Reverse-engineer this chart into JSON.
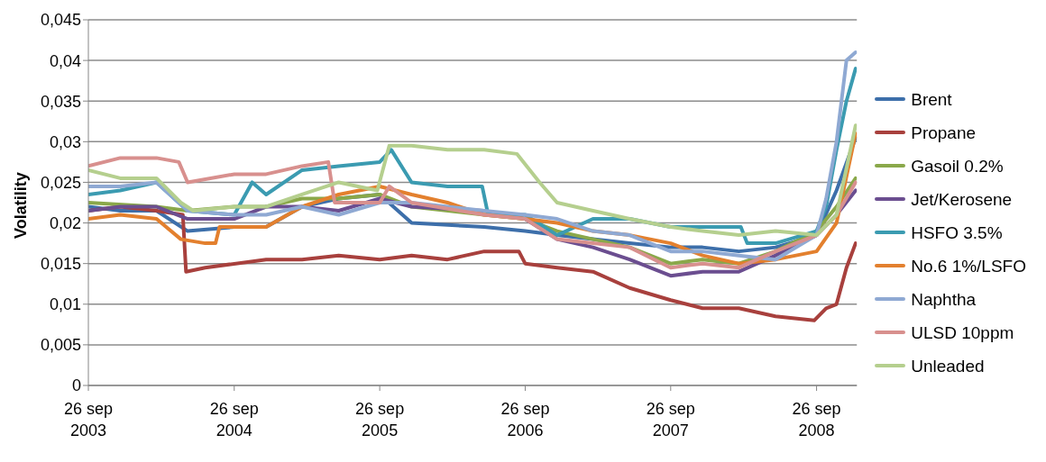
{
  "chart_data": {
    "type": "line",
    "ylabel": "Volatility",
    "xlim": [
      "2003-09-26",
      "2009-01-05"
    ],
    "xticks": [
      {
        "value": "2003-09-26",
        "label": "26 sep 2003"
      },
      {
        "value": "2004-09-26",
        "label": "26 sep 2004"
      },
      {
        "value": "2005-09-26",
        "label": "26 sep 2005"
      },
      {
        "value": "2006-09-26",
        "label": "26 sep 2006"
      },
      {
        "value": "2007-09-26",
        "label": "26 sep 2007"
      },
      {
        "value": "2008-09-26",
        "label": "26 sep 2008"
      }
    ],
    "ylim": [
      0,
      0.045
    ],
    "yticks": [
      0,
      {
        "value": 0.005,
        "label": "0,005"
      },
      {
        "value": 0.01,
        "label": "0,01"
      },
      {
        "value": 0.015,
        "label": "0,015"
      },
      {
        "value": 0.02,
        "label": "0,02"
      },
      {
        "value": 0.025,
        "label": "0,025"
      },
      {
        "value": 0.03,
        "label": "0,03"
      },
      {
        "value": 0.035,
        "label": "0,035"
      },
      {
        "value": 0.04,
        "label": "0,04"
      },
      {
        "value": 0.045,
        "label": "0,045"
      }
    ],
    "grid": "y",
    "legend": "right",
    "marker": "none",
    "line_style": "solid",
    "series": [
      {
        "name": "Brent",
        "color": "#3d6faa",
        "x": [
          "2003-09-26",
          "2003-12-15",
          "2004-03-15",
          "2004-06-01",
          "2004-09-26",
          "2004-12-15",
          "2005-03-15",
          "2005-06-15",
          "2005-09-26",
          "2005-12-15",
          "2006-06-15",
          "2006-09-26",
          "2006-12-15",
          "2007-03-15",
          "2007-06-15",
          "2007-09-26",
          "2007-12-15",
          "2008-03-15",
          "2008-06-15",
          "2008-09-26",
          "2008-11-15",
          "2009-01-02"
        ],
        "values": [
          0.022,
          0.0215,
          0.0215,
          0.019,
          0.0195,
          0.0195,
          0.022,
          0.023,
          0.0235,
          0.02,
          0.0195,
          0.019,
          0.0185,
          0.018,
          0.0175,
          0.017,
          0.017,
          0.0165,
          0.017,
          0.0185,
          0.024,
          0.0305
        ]
      },
      {
        "name": "Propane",
        "color": "#a8403d",
        "x": [
          "2003-09-26",
          "2003-12-15",
          "2004-03-15",
          "2004-05-20",
          "2004-05-28",
          "2004-07-15",
          "2004-12-15",
          "2005-03-15",
          "2005-06-15",
          "2005-09-26",
          "2005-12-15",
          "2006-03-15",
          "2006-06-15",
          "2006-09-10",
          "2006-09-26",
          "2006-12-15",
          "2007-03-15",
          "2007-06-15",
          "2007-09-26",
          "2007-12-15",
          "2008-03-15",
          "2008-06-15",
          "2008-09-20",
          "2008-10-20",
          "2008-11-15",
          "2008-12-10",
          "2009-01-02"
        ],
        "values": [
          0.0215,
          0.022,
          0.0215,
          0.021,
          0.014,
          0.0145,
          0.0155,
          0.0155,
          0.016,
          0.0155,
          0.016,
          0.0155,
          0.0165,
          0.0165,
          0.015,
          0.0145,
          0.014,
          0.012,
          0.0105,
          0.0095,
          0.0095,
          0.0085,
          0.008,
          0.0095,
          0.01,
          0.0145,
          0.0175
        ]
      },
      {
        "name": "Gasoil 0.2%",
        "color": "#8aa84a",
        "x": [
          "2003-09-26",
          "2004-03-15",
          "2004-06-01",
          "2004-09-26",
          "2004-12-15",
          "2005-03-15",
          "2005-06-15",
          "2005-09-26",
          "2005-12-15",
          "2006-06-15",
          "2006-09-26",
          "2006-12-15",
          "2007-03-15",
          "2007-06-15",
          "2007-09-26",
          "2007-12-15",
          "2008-03-15",
          "2008-06-15",
          "2008-09-26",
          "2008-11-15",
          "2009-01-02"
        ],
        "values": [
          0.0225,
          0.022,
          0.0215,
          0.022,
          0.022,
          0.023,
          0.023,
          0.0235,
          0.022,
          0.021,
          0.0205,
          0.019,
          0.018,
          0.017,
          0.015,
          0.0155,
          0.015,
          0.0165,
          0.019,
          0.022,
          0.0255
        ]
      },
      {
        "name": "Jet/Kerosene",
        "color": "#6b4e90",
        "x": [
          "2003-09-26",
          "2003-12-15",
          "2004-03-15",
          "2004-06-01",
          "2004-09-26",
          "2004-12-15",
          "2005-03-15",
          "2005-06-15",
          "2005-09-26",
          "2005-12-15",
          "2006-06-15",
          "2006-09-26",
          "2006-12-15",
          "2007-03-15",
          "2007-06-15",
          "2007-09-26",
          "2007-12-15",
          "2008-03-15",
          "2008-06-15",
          "2008-09-26",
          "2008-11-15",
          "2009-01-02"
        ],
        "values": [
          0.0215,
          0.022,
          0.022,
          0.0205,
          0.0205,
          0.022,
          0.022,
          0.0215,
          0.023,
          0.022,
          0.0215,
          0.0205,
          0.018,
          0.017,
          0.0155,
          0.0135,
          0.014,
          0.014,
          0.016,
          0.0185,
          0.021,
          0.024
        ]
      },
      {
        "name": "HSFO 3.5%",
        "color": "#3b9bb1",
        "x": [
          "2003-09-26",
          "2003-12-15",
          "2004-03-15",
          "2004-06-01",
          "2004-09-26",
          "2004-11-10",
          "2004-12-15",
          "2005-03-15",
          "2005-06-15",
          "2005-09-26",
          "2005-10-25",
          "2005-12-15",
          "2006-03-15",
          "2006-06-10",
          "2006-06-25",
          "2006-09-26",
          "2006-12-15",
          "2007-03-15",
          "2007-06-15",
          "2007-09-26",
          "2007-12-15",
          "2008-03-20",
          "2008-04-05",
          "2008-06-15",
          "2008-09-26",
          "2008-10-20",
          "2008-11-15",
          "2008-12-10",
          "2009-01-02"
        ],
        "values": [
          0.0235,
          0.024,
          0.025,
          0.0215,
          0.021,
          0.025,
          0.0235,
          0.0265,
          0.027,
          0.0275,
          0.029,
          0.025,
          0.0245,
          0.0245,
          0.021,
          0.021,
          0.0185,
          0.0205,
          0.0205,
          0.0195,
          0.0195,
          0.0195,
          0.0175,
          0.0175,
          0.019,
          0.022,
          0.029,
          0.035,
          0.039
        ]
      },
      {
        "name": "No.6 1%/LSFO",
        "color": "#e3802e",
        "x": [
          "2003-09-26",
          "2003-12-15",
          "2004-03-15",
          "2004-05-15",
          "2004-07-15",
          "2004-08-10",
          "2004-08-20",
          "2004-12-15",
          "2005-03-15",
          "2005-06-15",
          "2005-09-26",
          "2005-12-15",
          "2006-03-15",
          "2006-06-15",
          "2006-09-26",
          "2006-12-15",
          "2007-03-15",
          "2007-06-15",
          "2007-09-26",
          "2007-12-15",
          "2008-03-15",
          "2008-06-15",
          "2008-09-26",
          "2008-11-15",
          "2009-01-02"
        ],
        "values": [
          0.0205,
          0.021,
          0.0205,
          0.018,
          0.0175,
          0.0175,
          0.0195,
          0.0195,
          0.022,
          0.0235,
          0.0245,
          0.0235,
          0.0225,
          0.021,
          0.0205,
          0.02,
          0.019,
          0.0185,
          0.0175,
          0.016,
          0.015,
          0.0155,
          0.0165,
          0.02,
          0.031
        ]
      },
      {
        "name": "Naphtha",
        "color": "#8fa9d3",
        "x": [
          "2003-09-26",
          "2003-12-15",
          "2004-03-15",
          "2004-06-01",
          "2004-09-26",
          "2004-12-15",
          "2005-03-15",
          "2005-06-15",
          "2005-09-26",
          "2005-12-15",
          "2006-03-15",
          "2006-06-15",
          "2006-09-26",
          "2006-12-15",
          "2007-03-15",
          "2007-06-15",
          "2007-09-26",
          "2007-12-15",
          "2008-03-15",
          "2008-06-15",
          "2008-09-26",
          "2008-10-20",
          "2008-11-15",
          "2008-12-10",
          "2009-01-02"
        ],
        "values": [
          0.0245,
          0.0245,
          0.025,
          0.0215,
          0.021,
          0.021,
          0.022,
          0.021,
          0.0225,
          0.0225,
          0.022,
          0.0215,
          0.021,
          0.0205,
          0.019,
          0.0185,
          0.0165,
          0.0165,
          0.016,
          0.0155,
          0.0185,
          0.023,
          0.03,
          0.04,
          0.041
        ]
      },
      {
        "name": "ULSD 10ppm",
        "color": "#d8908e",
        "x": [
          "2003-09-26",
          "2003-12-15",
          "2004-03-15",
          "2004-05-10",
          "2004-06-01",
          "2004-09-26",
          "2004-12-15",
          "2005-03-15",
          "2005-05-20",
          "2005-06-05",
          "2005-09-26",
          "2005-10-20",
          "2005-12-15",
          "2006-06-15",
          "2006-09-26",
          "2006-12-15",
          "2007-03-15",
          "2007-06-15",
          "2007-09-26",
          "2007-12-15",
          "2008-03-15",
          "2008-06-15",
          "2008-09-26",
          "2008-11-15",
          "2009-01-02"
        ],
        "values": [
          0.027,
          0.028,
          0.028,
          0.0275,
          0.025,
          0.026,
          0.026,
          0.027,
          0.0275,
          0.0225,
          0.0225,
          0.0245,
          0.0225,
          0.021,
          0.0205,
          0.018,
          0.0175,
          0.017,
          0.0145,
          0.015,
          0.0145,
          0.0165,
          0.0185,
          0.021,
          0.025
        ]
      },
      {
        "name": "Unleaded",
        "color": "#b5cf8e",
        "x": [
          "2003-09-26",
          "2003-12-15",
          "2004-03-15",
          "2004-05-15",
          "2004-06-15",
          "2004-09-26",
          "2004-12-15",
          "2005-03-15",
          "2005-06-15",
          "2005-09-20",
          "2005-10-20",
          "2005-12-15",
          "2006-03-15",
          "2006-06-15",
          "2006-09-05",
          "2006-11-01",
          "2006-12-15",
          "2007-03-15",
          "2007-06-15",
          "2007-09-26",
          "2007-12-15",
          "2008-03-15",
          "2008-06-15",
          "2008-09-26",
          "2008-11-15",
          "2009-01-02"
        ],
        "values": [
          0.0265,
          0.0255,
          0.0255,
          0.0225,
          0.0215,
          0.022,
          0.022,
          0.0235,
          0.025,
          0.024,
          0.0295,
          0.0295,
          0.029,
          0.029,
          0.0285,
          0.025,
          0.0225,
          0.0215,
          0.0205,
          0.0195,
          0.019,
          0.0185,
          0.019,
          0.0185,
          0.021,
          0.032
        ]
      }
    ]
  }
}
